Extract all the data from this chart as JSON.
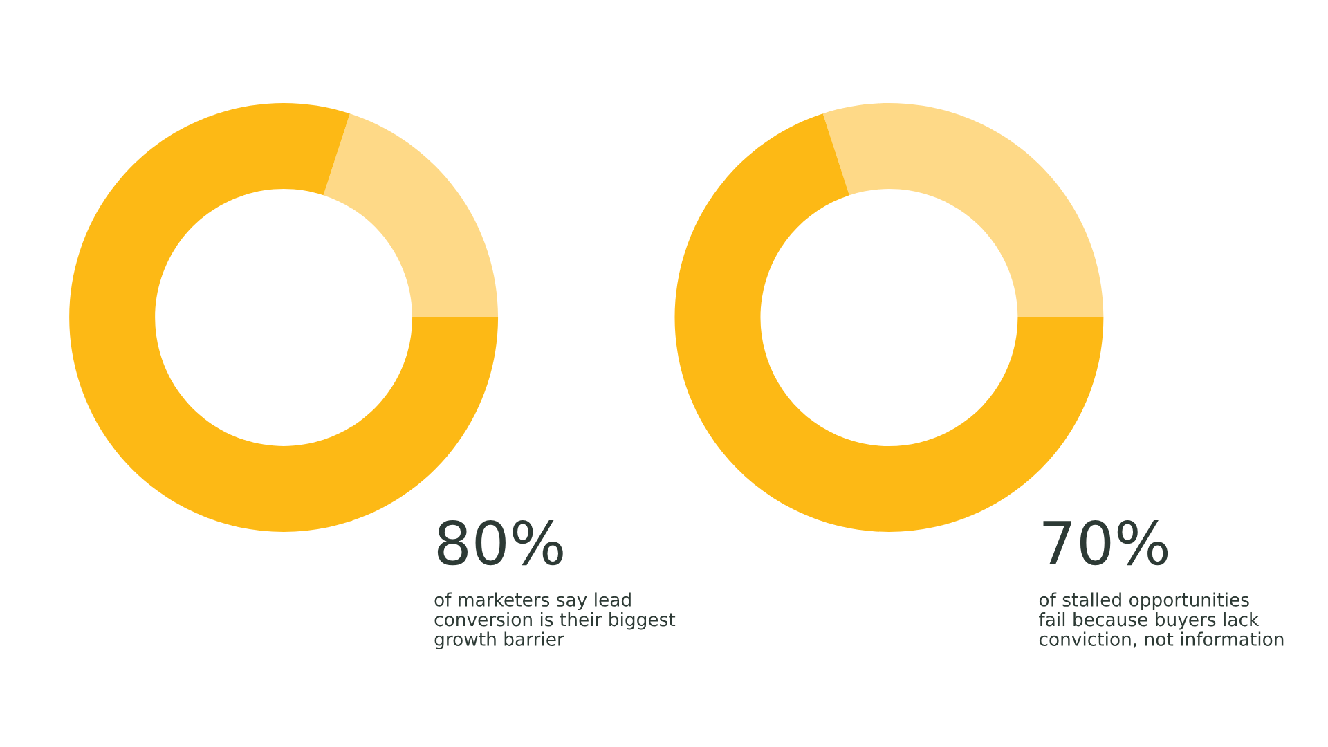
{
  "chart_data": [
    {
      "type": "donut",
      "categories": [
        null,
        null
      ],
      "values": [
        20,
        80
      ],
      "colors": [
        "#fed987",
        "#fdb915"
      ],
      "annotations": [
        "80%",
        "of marketers say lead\nconversion is their biggest\ngrowth barrier"
      ]
    },
    {
      "type": "donut",
      "categories": [
        null,
        null
      ],
      "values": [
        30,
        70
      ],
      "colors": [
        "#fed987",
        "#fdb915"
      ],
      "annotations": [
        "70%",
        "of stalled opportunities\nfail because buyers lack\nconviction, not information"
      ]
    }
  ]
}
